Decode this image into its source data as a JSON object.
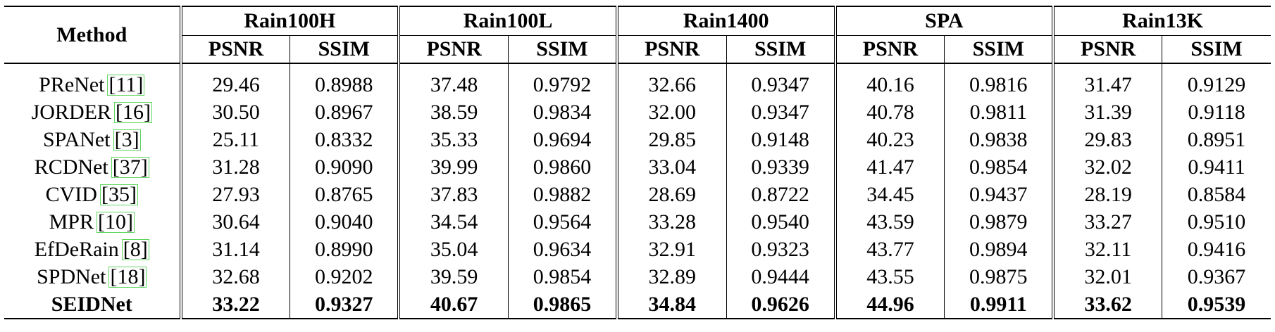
{
  "table": {
    "method_header": "Method",
    "datasets": [
      "Rain100H",
      "Rain100L",
      "Rain1400",
      "SPA",
      "Rain13K"
    ],
    "metrics": [
      "PSNR",
      "SSIM"
    ],
    "rows": [
      {
        "method": "PReNet",
        "cite": "11",
        "values": [
          "29.46",
          "0.8988",
          "37.48",
          "0.9792",
          "32.66",
          "0.9347",
          "40.16",
          "0.9816",
          "31.47",
          "0.9129"
        ]
      },
      {
        "method": "JORDER",
        "cite": "16",
        "values": [
          "30.50",
          "0.8967",
          "38.59",
          "0.9834",
          "32.00",
          "0.9347",
          "40.78",
          "0.9811",
          "31.39",
          "0.9118"
        ]
      },
      {
        "method": "SPANet",
        "cite": "3",
        "values": [
          "25.11",
          "0.8332",
          "35.33",
          "0.9694",
          "29.85",
          "0.9148",
          "40.23",
          "0.9838",
          "29.83",
          "0.8951"
        ]
      },
      {
        "method": "RCDNet",
        "cite": "37",
        "values": [
          "31.28",
          "0.9090",
          "39.99",
          "0.9860",
          "33.04",
          "0.9339",
          "41.47",
          "0.9854",
          "32.02",
          "0.9411"
        ]
      },
      {
        "method": "CVID",
        "cite": "35",
        "values": [
          "27.93",
          "0.8765",
          "37.83",
          "0.9882",
          "28.69",
          "0.8722",
          "34.45",
          "0.9437",
          "28.19",
          "0.8584"
        ]
      },
      {
        "method": "MPR",
        "cite": "10",
        "values": [
          "30.64",
          "0.9040",
          "34.54",
          "0.9564",
          "33.28",
          "0.9540",
          "43.59",
          "0.9879",
          "33.27",
          "0.9510"
        ]
      },
      {
        "method": "EfDeRain",
        "cite": "8",
        "values": [
          "31.14",
          "0.8990",
          "35.04",
          "0.9634",
          "32.91",
          "0.9323",
          "43.77",
          "0.9894",
          "32.11",
          "0.9416"
        ]
      },
      {
        "method": "SPDNet",
        "cite": "18",
        "values": [
          "32.68",
          "0.9202",
          "39.59",
          "0.9854",
          "32.89",
          "0.9444",
          "43.55",
          "0.9875",
          "32.01",
          "0.9367"
        ]
      },
      {
        "method": "SEIDNet",
        "cite": "",
        "bold": true,
        "values": [
          "33.22",
          "0.9327",
          "40.67",
          "0.9865",
          "34.84",
          "0.9626",
          "44.96",
          "0.9911",
          "33.62",
          "0.9539"
        ]
      }
    ]
  },
  "colors": {
    "cite_box": "#5dd65d",
    "text": "#000000"
  }
}
